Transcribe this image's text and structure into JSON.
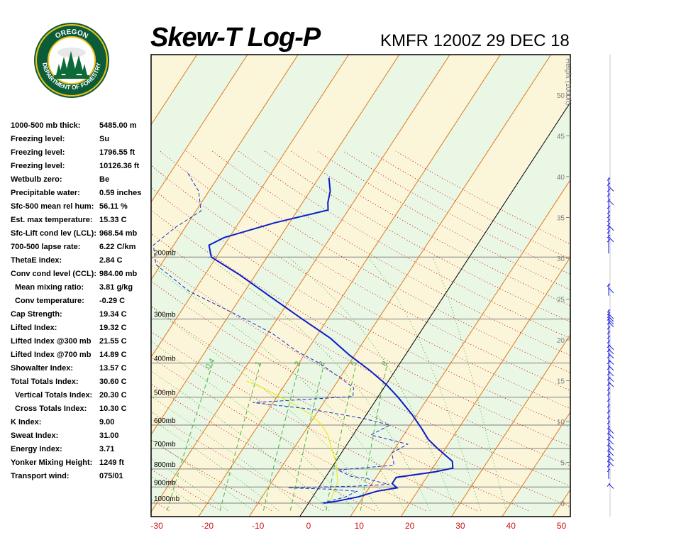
{
  "header": {
    "title": "Skew-T Log-P",
    "station": "KMFR 1200Z 29 DEC 18"
  },
  "logo": {
    "top_text": "OREGON",
    "bottom_text": "DEPARTMENT OF FORESTRY",
    "colors": {
      "ring": "#0b5d3a",
      "gold": "#f2c318",
      "tree": "#0d6b3a"
    }
  },
  "indices": [
    {
      "label": "1000-500 mb thick:",
      "value": "5485.00 m"
    },
    {
      "label": "Freezing level:",
      "value": "Su"
    },
    {
      "label": "Freezing level:",
      "value": "1796.55 ft"
    },
    {
      "label": "Freezing level:",
      "value": "10126.36 ft"
    },
    {
      "label": "Wetbulb zero:",
      "value": "Be"
    },
    {
      "label": "Precipitable water:",
      "value": "0.59 inches"
    },
    {
      "label": "Sfc-500 mean rel hum:",
      "value": "56.11 %"
    },
    {
      "label": "Est. max temperature:",
      "value": "15.33 C"
    },
    {
      "label": "Sfc-Lift cond lev (LCL):",
      "value": "968.54 mb"
    },
    {
      "label": "700-500 lapse rate:",
      "value": "6.22 C/km"
    },
    {
      "label": "ThetaE index:",
      "value": "2.84 C"
    },
    {
      "label": "Conv cond level (CCL):",
      "value": "984.00 mb"
    },
    {
      "label": "Mean mixing ratio:",
      "value": "3.81 g/kg",
      "indent": true
    },
    {
      "label": "Conv temperature:",
      "value": "-0.29 C",
      "indent": true
    },
    {
      "label": "Cap Strength:",
      "value": "19.34 C"
    },
    {
      "label": "Lifted Index:",
      "value": "19.32 C"
    },
    {
      "label": "Lifted Index @300 mb",
      "value": "21.55 C"
    },
    {
      "label": "Lifted Index @700 mb",
      "value": "14.89 C"
    },
    {
      "label": "Showalter Index:",
      "value": "13.57 C"
    },
    {
      "label": "Total Totals Index:",
      "value": "30.60 C"
    },
    {
      "label": "Vertical Totals Index:",
      "value": "20.30 C",
      "indent": true
    },
    {
      "label": "Cross Totals Index:",
      "value": "10.30 C",
      "indent": true
    },
    {
      "label": "K Index:",
      "value": "9.00"
    },
    {
      "label": "Sweat Index:",
      "value": "31.00"
    },
    {
      "label": "Energy Index:",
      "value": "3.71"
    },
    {
      "label": "Yonker Mixing Height:",
      "value": "1249 ft"
    },
    {
      "label": "Transport wind:",
      "value": "075/01"
    }
  ],
  "colors": {
    "temperature": "#0a1ec8",
    "dewpoint": "#1432c8",
    "parcel": "#e6e600",
    "isotherm": "#e0781e",
    "dry_adiabat": "#c81e1e",
    "moist_adiabat": "#50aa3c",
    "mixing_ratio": "#46b446",
    "isobar": "#808080",
    "band_green": "#eaf7e4",
    "band_yellow": "#fbf6da",
    "xtick": "#d01010"
  },
  "chart_data": {
    "type": "skew-t log-p",
    "x_ticks": [
      -30,
      -20,
      -10,
      0,
      10,
      20,
      30,
      40,
      50
    ],
    "xlim": [
      -30,
      50
    ],
    "ylim_mb": [
      1050,
      100
    ],
    "pressure_labels": [
      {
        "p": 200,
        "label": "200mb"
      },
      {
        "p": 300,
        "label": "300mb"
      },
      {
        "p": 400,
        "label": "400mb"
      },
      {
        "p": 500,
        "label": "500mb"
      },
      {
        "p": 600,
        "label": "600mb"
      },
      {
        "p": 700,
        "label": "700mb"
      },
      {
        "p": 800,
        "label": "800mb"
      },
      {
        "p": 900,
        "label": "900mb"
      },
      {
        "p": 1000,
        "label": "1000mb"
      }
    ],
    "height_axis": {
      "label": "Height (1000ft)",
      "ticks": [
        0,
        5,
        10,
        15,
        20,
        25,
        30,
        35,
        40,
        45,
        50
      ]
    },
    "mixing_ratio_labels": [
      "0.4",
      "1",
      "2",
      "3",
      "5",
      "8"
    ],
    "temperature": [
      {
        "p": 1000,
        "t": 3
      },
      {
        "p": 990,
        "t": 5
      },
      {
        "p": 960,
        "t": 9
      },
      {
        "p": 925,
        "t": 12
      },
      {
        "p": 905,
        "t": 15.5
      },
      {
        "p": 880,
        "t": 14
      },
      {
        "p": 845,
        "t": 14
      },
      {
        "p": 815,
        "t": 21
      },
      {
        "p": 795,
        "t": 24
      },
      {
        "p": 760,
        "t": 23
      },
      {
        "p": 700,
        "t": 18.5
      },
      {
        "p": 660,
        "t": 15.5
      },
      {
        "p": 615,
        "t": 12.8
      },
      {
        "p": 560,
        "t": 9
      },
      {
        "p": 500,
        "t": 4
      },
      {
        "p": 460,
        "t": 0
      },
      {
        "p": 420,
        "t": -5
      },
      {
        "p": 380,
        "t": -11
      },
      {
        "p": 340,
        "t": -17
      },
      {
        "p": 300,
        "t": -25
      },
      {
        "p": 260,
        "t": -34
      },
      {
        "p": 225,
        "t": -43
      },
      {
        "p": 200,
        "t": -51
      },
      {
        "p": 185,
        "t": -53
      },
      {
        "p": 176,
        "t": -51
      },
      {
        "p": 160,
        "t": -43
      },
      {
        "p": 147,
        "t": -34
      },
      {
        "p": 140,
        "t": -35
      },
      {
        "p": 130,
        "t": -36
      },
      {
        "p": 119,
        "t": -38
      }
    ],
    "dewpoint": [
      {
        "p": 1000,
        "t": 2.6
      },
      {
        "p": 990,
        "t": 3.6
      },
      {
        "p": 960,
        "t": 6.5
      },
      {
        "p": 925,
        "t": 8
      },
      {
        "p": 912,
        "t": 2
      },
      {
        "p": 905,
        "t": -6
      },
      {
        "p": 895,
        "t": 7
      },
      {
        "p": 885,
        "t": 13.5
      },
      {
        "p": 860,
        "t": 9.5
      },
      {
        "p": 848,
        "t": 8
      },
      {
        "p": 840,
        "t": 5
      },
      {
        "p": 805,
        "t": 1.5
      },
      {
        "p": 780,
        "t": 12
      },
      {
        "p": 720,
        "t": 10
      },
      {
        "p": 680,
        "t": 12
      },
      {
        "p": 640,
        "t": 3.5
      },
      {
        "p": 600,
        "t": 6
      },
      {
        "p": 575,
        "t": 0
      },
      {
        "p": 540,
        "t": -12
      },
      {
        "p": 518,
        "t": -24
      },
      {
        "p": 498,
        "t": -5
      },
      {
        "p": 470,
        "t": -6
      },
      {
        "p": 440,
        "t": -10
      },
      {
        "p": 400,
        "t": -16
      },
      {
        "p": 370,
        "t": -22
      },
      {
        "p": 330,
        "t": -29
      },
      {
        "p": 290,
        "t": -39
      },
      {
        "p": 250,
        "t": -51
      },
      {
        "p": 210,
        "t": -61
      },
      {
        "p": 185,
        "t": -64
      },
      {
        "p": 165,
        "t": -62
      },
      {
        "p": 148,
        "t": -59
      },
      {
        "p": 130,
        "t": -62
      },
      {
        "p": 114,
        "t": -67
      }
    ],
    "parcel": [
      {
        "p": 980,
        "t": 4
      },
      {
        "p": 870,
        "t": 3
      },
      {
        "p": 760,
        "t": 0
      },
      {
        "p": 700,
        "t": -2.5
      },
      {
        "p": 640,
        "t": -5
      },
      {
        "p": 600,
        "t": -7.5
      },
      {
        "p": 560,
        "t": -11
      },
      {
        "p": 525,
        "t": -15.5
      },
      {
        "p": 495,
        "t": -20
      },
      {
        "p": 470,
        "t": -24
      },
      {
        "p": 450,
        "t": -28
      }
    ],
    "wind_barbs": [
      {
        "p": 119,
        "spd": 45
      },
      {
        "p": 123,
        "spd": 40
      },
      {
        "p": 128,
        "spd": 40
      },
      {
        "p": 132,
        "spd": 35
      },
      {
        "p": 137,
        "spd": 40
      },
      {
        "p": 143,
        "spd": 50
      },
      {
        "p": 148,
        "spd": 40
      },
      {
        "p": 152,
        "spd": 40
      },
      {
        "p": 156,
        "spd": 35
      },
      {
        "p": 160,
        "spd": 40
      },
      {
        "p": 164,
        "spd": 40
      },
      {
        "p": 168,
        "spd": 35
      },
      {
        "p": 173,
        "spd": 30
      },
      {
        "p": 178,
        "spd": 30
      },
      {
        "p": 238,
        "spd": 25
      },
      {
        "p": 282,
        "spd": 25
      },
      {
        "p": 287,
        "spd": 25
      },
      {
        "p": 292,
        "spd": 25
      },
      {
        "p": 297,
        "spd": 25
      },
      {
        "p": 305,
        "spd": 30
      },
      {
        "p": 315,
        "spd": 30
      },
      {
        "p": 325,
        "spd": 30
      },
      {
        "p": 335,
        "spd": 30
      },
      {
        "p": 345,
        "spd": 25
      },
      {
        "p": 355,
        "spd": 25
      },
      {
        "p": 365,
        "spd": 25
      },
      {
        "p": 380,
        "spd": 25
      },
      {
        "p": 395,
        "spd": 25
      },
      {
        "p": 410,
        "spd": 25
      },
      {
        "p": 425,
        "spd": 25
      },
      {
        "p": 440,
        "spd": 25
      },
      {
        "p": 455,
        "spd": 20
      },
      {
        "p": 470,
        "spd": 20
      },
      {
        "p": 485,
        "spd": 20
      },
      {
        "p": 505,
        "spd": 20
      },
      {
        "p": 525,
        "spd": 20
      },
      {
        "p": 545,
        "spd": 20
      },
      {
        "p": 565,
        "spd": 20
      },
      {
        "p": 585,
        "spd": 20
      },
      {
        "p": 605,
        "spd": 15
      },
      {
        "p": 625,
        "spd": 15
      },
      {
        "p": 650,
        "spd": 15
      },
      {
        "p": 675,
        "spd": 15
      },
      {
        "p": 700,
        "spd": 15
      },
      {
        "p": 725,
        "spd": 15
      },
      {
        "p": 750,
        "spd": 15
      },
      {
        "p": 775,
        "spd": 10
      },
      {
        "p": 800,
        "spd": 10
      },
      {
        "p": 880,
        "spd": 5
      }
    ]
  }
}
